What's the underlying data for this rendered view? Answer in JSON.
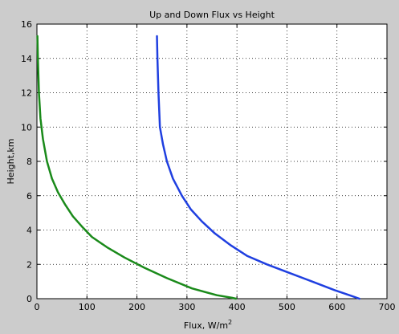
{
  "chart_data": {
    "type": "line",
    "title": "Up and Down Flux vs Height",
    "xlabel": "Flux, W/m",
    "xlabel_superscript": "2",
    "ylabel": "Height,km",
    "xlim": [
      0,
      700
    ],
    "ylim": [
      0,
      16
    ],
    "xticks": [
      "0",
      "100",
      "200",
      "300",
      "400",
      "500",
      "600",
      "700"
    ],
    "yticks": [
      "0",
      "2",
      "4",
      "6",
      "8",
      "10",
      "12",
      "14",
      "16"
    ],
    "grid": true,
    "series": [
      {
        "color": "#1f3fe0",
        "x": [
          240,
          241,
          243,
          246,
          252,
          260,
          272,
          290,
          308,
          330,
          356,
          388,
          420,
          460,
          505,
          550,
          595,
          625,
          645
        ],
        "y": [
          15.3,
          14.0,
          12.0,
          10.0,
          9.0,
          8.0,
          7.0,
          6.0,
          5.2,
          4.5,
          3.8,
          3.1,
          2.5,
          2.0,
          1.5,
          1.0,
          0.5,
          0.2,
          0.0
        ]
      },
      {
        "color": "#1a8a1a",
        "x": [
          1,
          2,
          4,
          7,
          12,
          20,
          30,
          42,
          56,
          72,
          90,
          110,
          140,
          175,
          215,
          260,
          310,
          360,
          390,
          398
        ],
        "y": [
          15.3,
          14.0,
          12.0,
          10.5,
          9.3,
          8.0,
          7.0,
          6.2,
          5.5,
          4.8,
          4.2,
          3.6,
          3.0,
          2.4,
          1.8,
          1.2,
          0.6,
          0.2,
          0.05,
          0.0
        ]
      }
    ]
  }
}
